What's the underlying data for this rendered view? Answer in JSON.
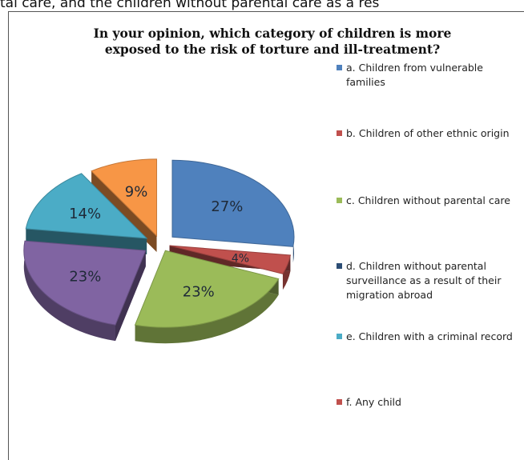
{
  "page_top_text": "tal care, and the children without parental care as a res",
  "chart_data": {
    "type": "pie",
    "title": "In your opinion, which category of children is more exposed to the risk of torture and ill-treatment?",
    "title_lines": [
      "In your opinion, which category of children is more",
      "exposed to the risk of torture and ill-treatment?"
    ],
    "style": "3d-exploded",
    "legend_placement": "right",
    "slices": [
      {
        "legend": "a. Children from vulnerable families",
        "value": 27,
        "label": "27%",
        "color": "#4f81bd"
      },
      {
        "legend": "b. Children of other ethnic origin",
        "value": 4,
        "label": "4%",
        "color": "#c0504d"
      },
      {
        "legend": "c. Children without parental care",
        "value": 23,
        "label": "23%",
        "color": "#9bbb59"
      },
      {
        "legend": "d. Children without parental surveillance as a result of their migration abroad",
        "value": 23,
        "label": "23%",
        "color": "#8064a2"
      },
      {
        "legend": "e. Children with a criminal record",
        "value": 14,
        "label": "14%",
        "color": "#4bacc6"
      },
      {
        "legend": "f. Any child",
        "value": 9,
        "label": "9%",
        "color": "#f79646"
      }
    ],
    "legend_entries": [
      {
        "label": "a. Children from vulnerable families",
        "color": "#4f81bd"
      },
      {
        "label": "b. Children of other ethnic origin",
        "color": "#c0504d"
      },
      {
        "label": "c. Children without parental care",
        "color": "#9bbb59"
      },
      {
        "label": "d. Children without parental surveillance as a result of their migration abroad",
        "color": "#2c4d75"
      },
      {
        "label": "e. Children with a criminal record",
        "color": "#4bacc6"
      },
      {
        "label": "f. Any child",
        "color": "#c0504d"
      }
    ]
  }
}
